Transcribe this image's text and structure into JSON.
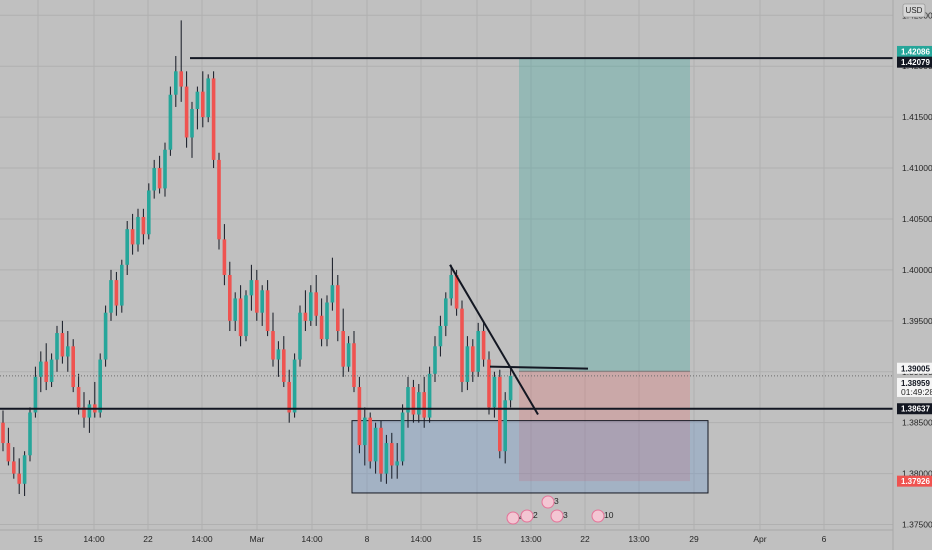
{
  "chart_data": {
    "type": "candlestick",
    "symbol_currency": "USD",
    "x_ticks": [
      "15",
      "14:00",
      "22",
      "14:00",
      "Mar",
      "14:00",
      "8",
      "14:00",
      "15",
      "13:00",
      "22",
      "13:00",
      "29",
      "Apr",
      "6"
    ],
    "y_ticks": [
      "1.42500",
      "1.42000",
      "1.41500",
      "1.41000",
      "1.40500",
      "1.40000",
      "1.39500",
      "1.39000",
      "1.38500",
      "1.38000",
      "1.37500"
    ],
    "ylim": [
      1.3725,
      1.4265
    ],
    "grid": true,
    "last_price": "1.38959",
    "countdown": "01:49:28",
    "price_tags": [
      {
        "label": "1.42086",
        "value": 1.42086,
        "bg": "#26a69a",
        "fg": "#ffffff"
      },
      {
        "label": "1.42079",
        "value": 1.42079,
        "bg": "#131722",
        "fg": "#ffffff"
      },
      {
        "label": "1.39005",
        "value": 1.39005,
        "bg": "#f5f5f5",
        "fg": "#131722"
      },
      {
        "label": "1.38637",
        "value": 1.38637,
        "bg": "#131722",
        "fg": "#ffffff"
      },
      {
        "label": "1.37926",
        "value": 1.37926,
        "bg": "#ef5350",
        "fg": "#ffffff"
      }
    ],
    "horizontal_levels": [
      1.42079,
      1.38637
    ],
    "position": {
      "entry": 1.39005,
      "target": 1.42086,
      "stop": 1.37926
    },
    "demand_zone": {
      "top": 1.3852,
      "bottom": 1.3781
    },
    "trendline": {
      "start": 1.4005,
      "end": 1.3858
    },
    "breakout_line": {
      "value": 1.3905
    },
    "event_badges": [
      "4",
      "2",
      "3",
      "3",
      "10"
    ],
    "candles": [
      [
        1.385,
        1.3862,
        1.3822,
        1.383
      ],
      [
        1.383,
        1.3845,
        1.3808,
        1.3812
      ],
      [
        1.3812,
        1.3826,
        1.3795,
        1.38
      ],
      [
        1.38,
        1.3815,
        1.378,
        1.379
      ],
      [
        1.379,
        1.3822,
        1.3778,
        1.3818
      ],
      [
        1.3818,
        1.3865,
        1.3812,
        1.386
      ],
      [
        1.386,
        1.3905,
        1.3855,
        1.3895
      ],
      [
        1.3895,
        1.392,
        1.388,
        1.391
      ],
      [
        1.391,
        1.3928,
        1.3882,
        1.389
      ],
      [
        1.389,
        1.3918,
        1.3885,
        1.3912
      ],
      [
        1.3912,
        1.3945,
        1.39,
        1.3938
      ],
      [
        1.3938,
        1.395,
        1.3908,
        1.3915
      ],
      [
        1.3915,
        1.394,
        1.39,
        1.3925
      ],
      [
        1.3925,
        1.3932,
        1.388,
        1.3885
      ],
      [
        1.3885,
        1.3898,
        1.3858,
        1.3865
      ],
      [
        1.3865,
        1.388,
        1.3845,
        1.3855
      ],
      [
        1.3855,
        1.3872,
        1.384,
        1.3868
      ],
      [
        1.3868,
        1.389,
        1.3855,
        1.386
      ],
      [
        1.386,
        1.3918,
        1.3855,
        1.3912
      ],
      [
        1.3912,
        1.3965,
        1.3905,
        1.3958
      ],
      [
        1.3958,
        1.4,
        1.395,
        1.399
      ],
      [
        1.399,
        1.3998,
        1.3955,
        1.3965
      ],
      [
        1.3965,
        1.401,
        1.3958,
        1.4005
      ],
      [
        1.4005,
        1.4048,
        1.3995,
        1.404
      ],
      [
        1.404,
        1.4055,
        1.4015,
        1.4025
      ],
      [
        1.4025,
        1.406,
        1.4018,
        1.4052
      ],
      [
        1.4052,
        1.406,
        1.4025,
        1.4035
      ],
      [
        1.4035,
        1.4085,
        1.403,
        1.4078
      ],
      [
        1.4078,
        1.4108,
        1.407,
        1.41
      ],
      [
        1.41,
        1.4112,
        1.4075,
        1.408
      ],
      [
        1.408,
        1.4125,
        1.4072,
        1.4118
      ],
      [
        1.4118,
        1.418,
        1.4112,
        1.4172
      ],
      [
        1.4172,
        1.421,
        1.416,
        1.4195
      ],
      [
        1.4195,
        1.4245,
        1.4165,
        1.418
      ],
      [
        1.418,
        1.4195,
        1.412,
        1.413
      ],
      [
        1.413,
        1.4165,
        1.411,
        1.4158
      ],
      [
        1.4158,
        1.418,
        1.4138,
        1.4175
      ],
      [
        1.4175,
        1.4195,
        1.414,
        1.415
      ],
      [
        1.415,
        1.4192,
        1.4145,
        1.4188
      ],
      [
        1.4188,
        1.4195,
        1.41,
        1.4108
      ],
      [
        1.4108,
        1.4115,
        1.402,
        1.403
      ],
      [
        1.403,
        1.4045,
        1.3985,
        1.3995
      ],
      [
        1.3995,
        1.4008,
        1.394,
        1.395
      ],
      [
        1.395,
        1.3978,
        1.394,
        1.3972
      ],
      [
        1.3972,
        1.3985,
        1.3925,
        1.3935
      ],
      [
        1.3935,
        1.398,
        1.393,
        1.3975
      ],
      [
        1.3975,
        1.4005,
        1.396,
        1.399
      ],
      [
        1.399,
        1.4,
        1.395,
        1.3958
      ],
      [
        1.3958,
        1.3985,
        1.3945,
        1.398
      ],
      [
        1.398,
        1.399,
        1.3935,
        1.394
      ],
      [
        1.394,
        1.3958,
        1.3905,
        1.3912
      ],
      [
        1.3912,
        1.393,
        1.3895,
        1.3922
      ],
      [
        1.3922,
        1.3935,
        1.3885,
        1.389
      ],
      [
        1.389,
        1.3902,
        1.385,
        1.386
      ],
      [
        1.386,
        1.3918,
        1.3855,
        1.3912
      ],
      [
        1.3912,
        1.3965,
        1.3905,
        1.3958
      ],
      [
        1.3958,
        1.398,
        1.394,
        1.395
      ],
      [
        1.395,
        1.3985,
        1.3945,
        1.3978
      ],
      [
        1.3978,
        1.3995,
        1.3945,
        1.3955
      ],
      [
        1.3955,
        1.3972,
        1.3925,
        1.3932
      ],
      [
        1.3932,
        1.3975,
        1.3925,
        1.3968
      ],
      [
        1.3968,
        1.4012,
        1.396,
        1.3985
      ],
      [
        1.3985,
        1.3995,
        1.393,
        1.394
      ],
      [
        1.394,
        1.3962,
        1.3895,
        1.3905
      ],
      [
        1.3905,
        1.3935,
        1.39,
        1.3928
      ],
      [
        1.3928,
        1.394,
        1.388,
        1.3885
      ],
      [
        1.3885,
        1.3895,
        1.382,
        1.3828
      ],
      [
        1.3828,
        1.3865,
        1.3808,
        1.3855
      ],
      [
        1.3855,
        1.386,
        1.3805,
        1.3812
      ],
      [
        1.3812,
        1.385,
        1.38,
        1.3845
      ],
      [
        1.3845,
        1.3852,
        1.3792,
        1.38
      ],
      [
        1.38,
        1.3838,
        1.379,
        1.383
      ],
      [
        1.383,
        1.384,
        1.3795,
        1.3808
      ],
      [
        1.3808,
        1.383,
        1.3795,
        1.3812
      ],
      [
        1.3812,
        1.3868,
        1.3808,
        1.386
      ],
      [
        1.386,
        1.3895,
        1.3845,
        1.3885
      ],
      [
        1.3885,
        1.3892,
        1.385,
        1.3858
      ],
      [
        1.3858,
        1.3888,
        1.385,
        1.388
      ],
      [
        1.388,
        1.3895,
        1.3845,
        1.3855
      ],
      [
        1.3855,
        1.3905,
        1.385,
        1.3898
      ],
      [
        1.3898,
        1.3935,
        1.389,
        1.3925
      ],
      [
        1.3925,
        1.3955,
        1.3915,
        1.3945
      ],
      [
        1.3945,
        1.3978,
        1.3935,
        1.3972
      ],
      [
        1.3972,
        1.4005,
        1.3965,
        1.3995
      ],
      [
        1.3995,
        1.4,
        1.3955,
        1.3962
      ],
      [
        1.3962,
        1.397,
        1.388,
        1.389
      ],
      [
        1.389,
        1.3935,
        1.3882,
        1.3925
      ],
      [
        1.3925,
        1.3932,
        1.389,
        1.39
      ],
      [
        1.39,
        1.3948,
        1.3895,
        1.394
      ],
      [
        1.394,
        1.395,
        1.3905,
        1.3912
      ],
      [
        1.3912,
        1.392,
        1.3858,
        1.3865
      ],
      [
        1.3865,
        1.39,
        1.3855,
        1.3895
      ],
      [
        1.3895,
        1.3902,
        1.3815,
        1.3822
      ],
      [
        1.3822,
        1.388,
        1.381,
        1.3872
      ],
      [
        1.3872,
        1.3905,
        1.3865,
        1.3896
      ]
    ]
  }
}
